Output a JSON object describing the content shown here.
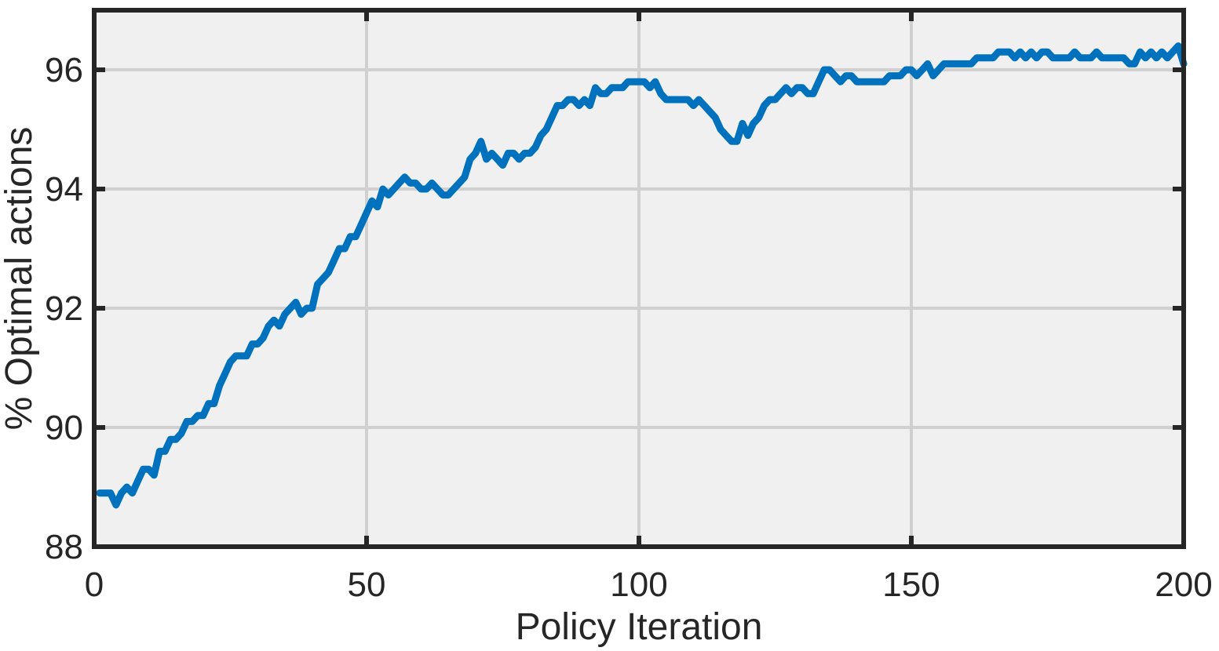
{
  "chart_data": {
    "type": "line",
    "title": "",
    "xlabel": "Policy Iteration",
    "ylabel": "% Optimal actions",
    "xlim": [
      0,
      200
    ],
    "ylim": [
      88,
      97
    ],
    "x_ticks": [
      0,
      50,
      100,
      150,
      200
    ],
    "y_ticks": [
      88,
      90,
      92,
      94,
      96
    ],
    "x_tick_labels": [
      "0",
      "50",
      "100",
      "150",
      "200"
    ],
    "y_tick_labels": [
      "88",
      "90",
      "92",
      "94",
      "96"
    ],
    "grid": true,
    "legend": "none",
    "colors": {
      "line": "#0072BD",
      "plot_bg": "#F0F0F0",
      "grid": "#D0D0D0",
      "axes": "#262626"
    },
    "series": [
      {
        "x": [
          1,
          2,
          3,
          4,
          5,
          6,
          7,
          8,
          9,
          10,
          11,
          12,
          13,
          14,
          15,
          16,
          17,
          18,
          19,
          20,
          21,
          22,
          23,
          24,
          25,
          26,
          27,
          28,
          29,
          30,
          31,
          32,
          33,
          34,
          35,
          36,
          37,
          38,
          39,
          40,
          41,
          42,
          43,
          44,
          45,
          46,
          47,
          48,
          49,
          50,
          51,
          52,
          53,
          54,
          55,
          56,
          57,
          58,
          59,
          60,
          61,
          62,
          63,
          64,
          65,
          66,
          67,
          68,
          69,
          70,
          71,
          72,
          73,
          74,
          75,
          76,
          77,
          78,
          79,
          80,
          81,
          82,
          83,
          84,
          85,
          86,
          87,
          88,
          89,
          90,
          91,
          92,
          93,
          94,
          95,
          96,
          97,
          98,
          99,
          100,
          101,
          102,
          103,
          104,
          105,
          106,
          107,
          108,
          109,
          110,
          111,
          112,
          113,
          114,
          115,
          116,
          117,
          118,
          119,
          120,
          121,
          122,
          123,
          124,
          125,
          126,
          127,
          128,
          129,
          130,
          131,
          132,
          133,
          134,
          135,
          136,
          137,
          138,
          139,
          140,
          141,
          142,
          143,
          144,
          145,
          146,
          147,
          148,
          149,
          150,
          151,
          152,
          153,
          154,
          155,
          156,
          157,
          158,
          159,
          160,
          161,
          162,
          163,
          164,
          165,
          166,
          167,
          168,
          169,
          170,
          171,
          172,
          173,
          174,
          175,
          176,
          177,
          178,
          179,
          180,
          181,
          182,
          183,
          184,
          185,
          186,
          187,
          188,
          189,
          190,
          191,
          192,
          193,
          194,
          195,
          196,
          197,
          198,
          199,
          200
        ],
        "values": [
          88.9,
          88.9,
          88.9,
          88.7,
          88.9,
          89.0,
          88.9,
          89.1,
          89.3,
          89.3,
          89.2,
          89.6,
          89.6,
          89.8,
          89.8,
          89.9,
          90.1,
          90.1,
          90.2,
          90.2,
          90.4,
          90.4,
          90.7,
          90.9,
          91.1,
          91.2,
          91.2,
          91.2,
          91.4,
          91.4,
          91.5,
          91.7,
          91.8,
          91.7,
          91.9,
          92.0,
          92.1,
          91.9,
          92.0,
          92.0,
          92.4,
          92.5,
          92.6,
          92.8,
          93.0,
          93.0,
          93.2,
          93.2,
          93.4,
          93.6,
          93.8,
          93.7,
          94.0,
          93.9,
          94.0,
          94.1,
          94.2,
          94.1,
          94.1,
          94.0,
          94.0,
          94.1,
          94.0,
          93.9,
          93.9,
          94.0,
          94.1,
          94.2,
          94.5,
          94.6,
          94.8,
          94.5,
          94.6,
          94.5,
          94.4,
          94.6,
          94.6,
          94.5,
          94.6,
          94.6,
          94.7,
          94.9,
          95.0,
          95.2,
          95.4,
          95.4,
          95.5,
          95.5,
          95.4,
          95.5,
          95.4,
          95.7,
          95.6,
          95.6,
          95.7,
          95.7,
          95.7,
          95.8,
          95.8,
          95.8,
          95.8,
          95.7,
          95.8,
          95.6,
          95.5,
          95.5,
          95.5,
          95.5,
          95.5,
          95.4,
          95.5,
          95.4,
          95.3,
          95.2,
          95.0,
          94.9,
          94.8,
          94.8,
          95.1,
          94.9,
          95.1,
          95.2,
          95.4,
          95.5,
          95.5,
          95.6,
          95.7,
          95.6,
          95.7,
          95.7,
          95.6,
          95.6,
          95.8,
          96.0,
          96.0,
          95.9,
          95.8,
          95.9,
          95.9,
          95.8,
          95.8,
          95.8,
          95.8,
          95.8,
          95.8,
          95.9,
          95.9,
          95.9,
          96.0,
          96.0,
          95.9,
          96.0,
          96.1,
          95.9,
          96.0,
          96.1,
          96.1,
          96.1,
          96.1,
          96.1,
          96.1,
          96.2,
          96.2,
          96.2,
          96.2,
          96.3,
          96.3,
          96.3,
          96.2,
          96.3,
          96.2,
          96.3,
          96.2,
          96.3,
          96.3,
          96.2,
          96.2,
          96.2,
          96.2,
          96.3,
          96.2,
          96.2,
          96.2,
          96.3,
          96.2,
          96.2,
          96.2,
          96.2,
          96.2,
          96.1,
          96.1,
          96.3,
          96.2,
          96.3,
          96.2,
          96.3,
          96.2,
          96.3,
          96.4,
          96.1
        ]
      }
    ]
  }
}
